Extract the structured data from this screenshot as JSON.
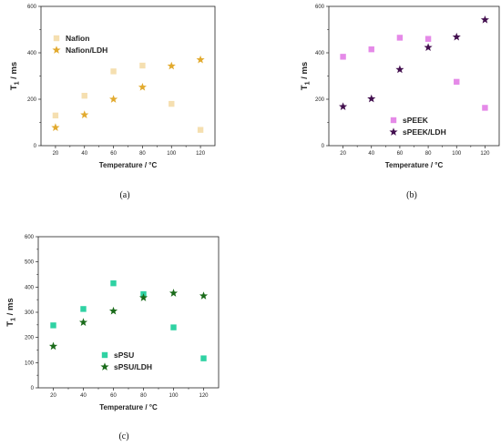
{
  "chart_data": [
    {
      "id": "a",
      "type": "scatter",
      "caption": "(a)",
      "xlabel": "Temperature / °C",
      "ylabel_main": "T",
      "ylabel_sub": "1",
      "ylabel_unit": " / ms",
      "xlim": [
        10,
        130
      ],
      "ylim": [
        0,
        600
      ],
      "xticks": [
        20,
        40,
        60,
        80,
        100,
        120
      ],
      "yticks": [
        0,
        200,
        400,
        600
      ],
      "legend_position": "top-left",
      "series": [
        {
          "name": "Nafion",
          "marker": "square",
          "color": "#f5dfb0",
          "x": [
            20,
            40,
            60,
            80,
            100,
            120
          ],
          "y": [
            130,
            215,
            320,
            345,
            180,
            68
          ]
        },
        {
          "name": "Nafion/LDH",
          "marker": "star",
          "color": "#e2aa2e",
          "x": [
            20,
            40,
            60,
            80,
            100,
            120
          ],
          "y": [
            78,
            133,
            200,
            252,
            343,
            370
          ]
        }
      ]
    },
    {
      "id": "b",
      "type": "scatter",
      "caption": "(b)",
      "xlabel": "Temperature / °C",
      "ylabel_main": "T",
      "ylabel_sub": "1",
      "ylabel_unit": " / ms",
      "xlim": [
        10,
        130
      ],
      "ylim": [
        0,
        600
      ],
      "xticks": [
        20,
        40,
        60,
        80,
        100,
        120
      ],
      "yticks": [
        0,
        200,
        400,
        600
      ],
      "legend_position": "bottom-right",
      "series": [
        {
          "name": "sPEEK",
          "marker": "square",
          "color": "#e58ae8",
          "x": [
            20,
            40,
            60,
            80,
            100,
            120
          ],
          "y": [
            383,
            415,
            465,
            460,
            275,
            163
          ]
        },
        {
          "name": "sPEEK/LDH",
          "marker": "star",
          "color": "#43104f",
          "x": [
            20,
            40,
            60,
            80,
            100,
            120
          ],
          "y": [
            168,
            202,
            328,
            423,
            468,
            542
          ]
        }
      ]
    },
    {
      "id": "c",
      "type": "scatter",
      "caption": "(c)",
      "xlabel": "Temperature / °C",
      "ylabel_main": "T",
      "ylabel_sub": "1",
      "ylabel_unit": " / ms",
      "xlim": [
        10,
        130
      ],
      "ylim": [
        0,
        600
      ],
      "xticks": [
        20,
        40,
        60,
        80,
        100,
        120
      ],
      "yticks": [
        0,
        100,
        200,
        300,
        400,
        500,
        600
      ],
      "legend_position": "bottom-center",
      "series": [
        {
          "name": "sPSU",
          "marker": "square",
          "color": "#2fd2a3",
          "x": [
            20,
            40,
            60,
            80,
            100,
            120
          ],
          "y": [
            248,
            313,
            415,
            372,
            240,
            117
          ]
        },
        {
          "name": "sPSU/LDH",
          "marker": "star",
          "color": "#1a6b1a",
          "x": [
            20,
            40,
            60,
            80,
            100,
            120
          ],
          "y": [
            165,
            260,
            305,
            358,
            376,
            365
          ]
        }
      ]
    }
  ]
}
